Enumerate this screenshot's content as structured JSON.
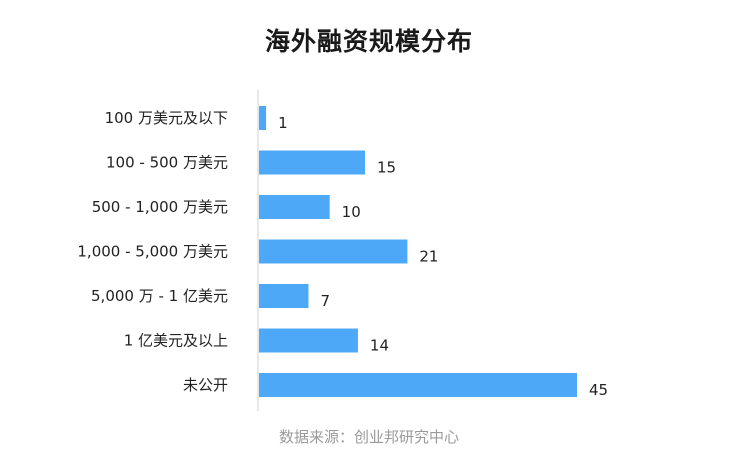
{
  "title": "海外融资规模分布",
  "source": "数据来源：创业邦研究中心",
  "chart_data": {
    "type": "bar",
    "orientation": "horizontal",
    "title": "海外融资规模分布",
    "categories": [
      "100 万美元及以下",
      "100 - 500 万美元",
      "500 - 1,000 万美元",
      "1,000 - 5,000 万美元",
      "5,000 万 - 1 亿美元",
      "1 亿美元及以上",
      "未公开"
    ],
    "values": [
      1,
      15,
      10,
      21,
      7,
      14,
      45
    ],
    "xlim": [
      0,
      45
    ],
    "bar_color": "#4da9f7",
    "grid": false,
    "legend": "none",
    "data_labels": true
  }
}
